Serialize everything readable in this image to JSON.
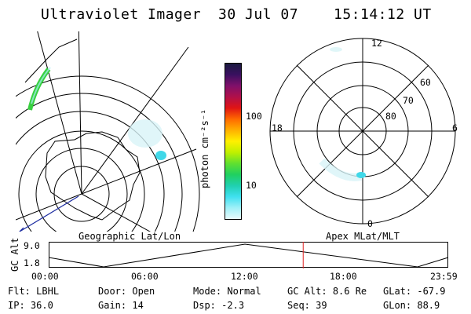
{
  "header": {
    "title": "Ultraviolet Imager",
    "date": "30 Jul 07",
    "time": "15:14:12 UT"
  },
  "left_panel": {
    "caption": "Geographic Lat/Lon"
  },
  "right_panel": {
    "caption": "Apex MLat/MLT",
    "mlt_labels": {
      "top": "12",
      "bottom": "0",
      "left": "18",
      "right": "6"
    },
    "mlat_labels": [
      "60",
      "70",
      "80"
    ]
  },
  "colorbar": {
    "unit_label": "photon cm⁻²s⁻¹",
    "tick_labels": [
      "100",
      "10"
    ],
    "colors": [
      "#1a1a40",
      "#3a1060",
      "#80106a",
      "#b0104a",
      "#e01414",
      "#ff6a00",
      "#ffb000",
      "#fff000",
      "#c0f000",
      "#60e030",
      "#20d060",
      "#20d0b0",
      "#40e0f0",
      "#a0f0f8",
      "#e8fafc"
    ]
  },
  "altitude_strip": {
    "axis_title": "GC Alt",
    "y_ticks": [
      "9.0",
      "1.8"
    ],
    "x_ticks": [
      "00:00",
      "06:00",
      "12:00",
      "18:00",
      "23:59"
    ],
    "current_time_fraction": 0.637
  },
  "info": {
    "row1": [
      {
        "label": "Flt:",
        "value": "LBHL"
      },
      {
        "label": "Door:",
        "value": "Open"
      },
      {
        "label": "Mode:",
        "value": "Normal"
      },
      {
        "label": "GC Alt:",
        "value": "8.6 Re"
      },
      {
        "label": "GLat:",
        "value": "-67.9"
      }
    ],
    "row2": [
      {
        "label": "IP:",
        "value": "36.0"
      },
      {
        "label": "Gain:",
        "value": "14"
      },
      {
        "label": "Dsp:",
        "value": "-2.3"
      },
      {
        "label": "Seq:",
        "value": "39"
      },
      {
        "label": "GLon:",
        "value": "88.9"
      }
    ]
  }
}
